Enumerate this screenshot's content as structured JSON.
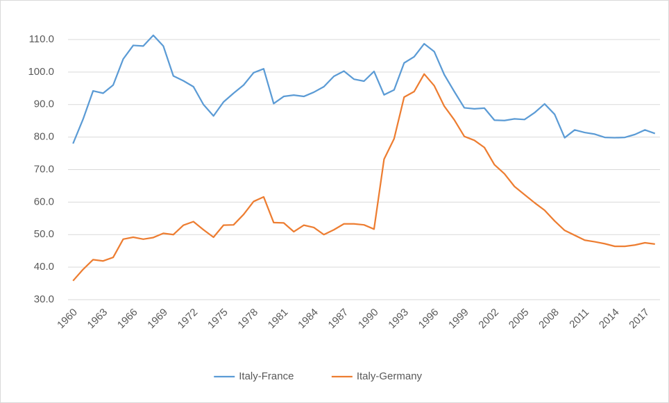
{
  "chart_data": {
    "type": "line",
    "categories": [
      "1960",
      null,
      null,
      "1963",
      null,
      null,
      "1966",
      null,
      null,
      "1969",
      null,
      null,
      "1972",
      null,
      null,
      "1975",
      null,
      null,
      "1978",
      null,
      null,
      "1981",
      null,
      null,
      "1984",
      null,
      null,
      "1987",
      null,
      null,
      "1990",
      null,
      null,
      "1993",
      null,
      null,
      "1996",
      null,
      null,
      "1999",
      null,
      null,
      "2002",
      null,
      null,
      "2005",
      null,
      null,
      "2008",
      null,
      null,
      "2011",
      null,
      null,
      "2014",
      null,
      null,
      "2017",
      null
    ],
    "series": [
      {
        "name": "Italy-France",
        "color": "#5b9bd5",
        "values": [
          78.0,
          85.5,
          94.2,
          93.5,
          96.0,
          104.0,
          108.2,
          108.0,
          111.3,
          108.0,
          98.8,
          97.3,
          95.5,
          90.0,
          86.5,
          90.8,
          93.5,
          96.0,
          99.8,
          101.0,
          90.3,
          92.5,
          92.9,
          92.5,
          93.8,
          95.5,
          98.7,
          100.3,
          97.8,
          97.2,
          100.2,
          93.0,
          94.5,
          102.8,
          104.7,
          108.7,
          106.3,
          99.2,
          94.0,
          89.0,
          88.7,
          88.9,
          85.2,
          85.1,
          85.6,
          85.4,
          87.5,
          90.2,
          87.0,
          79.8,
          82.2,
          81.4,
          80.9,
          79.9,
          79.8,
          79.9,
          80.8,
          82.2,
          81.1
        ]
      },
      {
        "name": "Italy-Germany",
        "color": "#ed7d31",
        "values": [
          35.8,
          39.3,
          42.3,
          41.9,
          43.0,
          48.6,
          49.2,
          48.6,
          49.1,
          50.4,
          50.0,
          52.9,
          54.0,
          51.5,
          49.2,
          52.9,
          53.0,
          56.2,
          60.2,
          61.6,
          53.7,
          53.6,
          50.9,
          52.9,
          52.2,
          50.0,
          51.5,
          53.3,
          53.3,
          53.0,
          51.7,
          73.2,
          79.5,
          92.3,
          94.0,
          99.4,
          95.8,
          89.5,
          85.3,
          80.2,
          79.0,
          76.8,
          71.5,
          68.7,
          64.8,
          62.3,
          59.8,
          57.5,
          54.2,
          51.3,
          49.8,
          48.3,
          47.8,
          47.2,
          46.4,
          46.4,
          46.8,
          47.5,
          47.1
        ]
      }
    ],
    "ylim": [
      30,
      110
    ],
    "yticks": [
      {
        "value": 30,
        "label": "30.0"
      },
      {
        "value": 40,
        "label": "40.0"
      },
      {
        "value": 50,
        "label": "50.0"
      },
      {
        "value": 60,
        "label": "60.0"
      },
      {
        "value": 70,
        "label": "70.0"
      },
      {
        "value": 80,
        "label": "80.0"
      },
      {
        "value": 90,
        "label": "90.0"
      },
      {
        "value": 100,
        "label": "100.0"
      },
      {
        "value": 110,
        "label": "110.0"
      }
    ],
    "grid": true,
    "legend": "bottom"
  }
}
